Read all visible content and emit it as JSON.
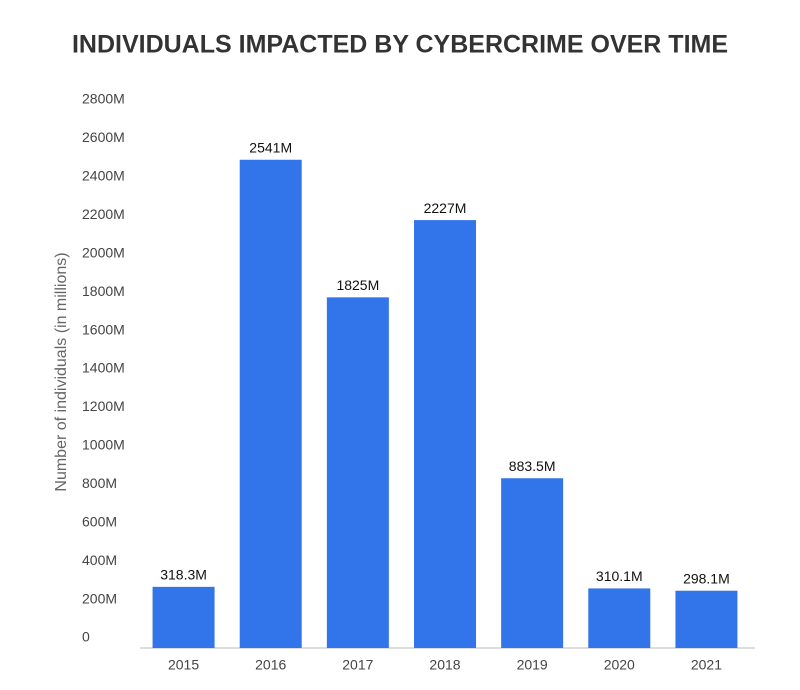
{
  "chart_data": {
    "type": "bar",
    "title": "INDIVIDUALS IMPACTED BY CYBERCRIME OVER TIME",
    "y_label": "Number of individuals (in millions)",
    "categories": [
      "2015",
      "2016",
      "2017",
      "2018",
      "2019",
      "2020",
      "2021"
    ],
    "values": [
      318.3,
      2541,
      1825,
      2227,
      883.5,
      310.1,
      298.1
    ],
    "value_labels": [
      "318.3M",
      "2541M",
      "1825M",
      "2227M",
      "883.5M",
      "310.1M",
      "298.1M"
    ],
    "color": "#3274ea",
    "ylim": [
      0,
      2800
    ],
    "yticks": [
      0,
      {
        "value": 200,
        "label": "200M"
      },
      {
        "value": 400,
        "label": "400M"
      },
      {
        "value": 600,
        "label": "600M"
      },
      {
        "value": 800,
        "label": "800M"
      },
      {
        "value": 1000,
        "label": "1000M"
      },
      {
        "value": 1200,
        "label": "1200M"
      },
      {
        "value": 1400,
        "label": "1400M"
      },
      {
        "value": 1600,
        "label": "1600M"
      },
      {
        "value": 1800,
        "label": "1800M"
      },
      {
        "value": 2000,
        "label": "2000M"
      },
      {
        "value": 2200,
        "label": "2200M"
      },
      {
        "value": 2400,
        "label": "2400M"
      },
      {
        "value": 2600,
        "label": "2600M"
      },
      {
        "value": 2800,
        "label": "2800M"
      }
    ],
    "grid": false
  }
}
